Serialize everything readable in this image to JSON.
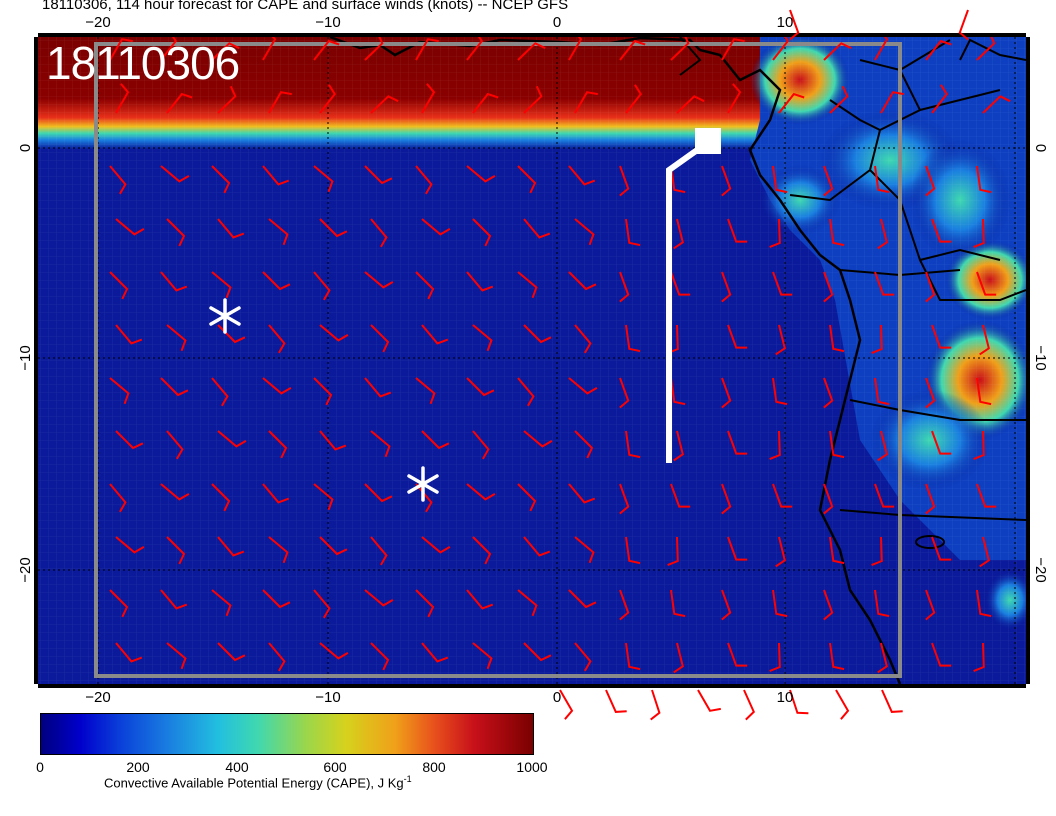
{
  "title": "18110306, 114 hour forecast for CAPE and surface winds (knots) -- NCEP GFS",
  "run_stamp": "18110306",
  "map": {
    "lon_ticks_top": [
      "−20",
      "−10",
      "0",
      "10"
    ],
    "lon_ticks_bottom": [
      "−20",
      "−10",
      "0",
      "10"
    ],
    "lat_ticks_left": [
      "0",
      "−10",
      "−20"
    ],
    "lat_ticks_right": [
      "0",
      "−10",
      "−20"
    ],
    "colors": {
      "ocean_base": "#0a1a9a",
      "cape_high": "#7a0000",
      "wind_barbs": "#ff0000",
      "track": "#ffffff",
      "coastline": "#000000"
    },
    "icons": [
      "asterisk-marker",
      "square-marker"
    ]
  },
  "colorbar": {
    "tick_labels": [
      "0",
      "200",
      "400",
      "600",
      "800",
      "1000"
    ],
    "title_main": "Convective Available Potential Energy (CAPE), J Kg",
    "title_sup": "-1",
    "range": [
      0,
      1000
    ]
  }
}
